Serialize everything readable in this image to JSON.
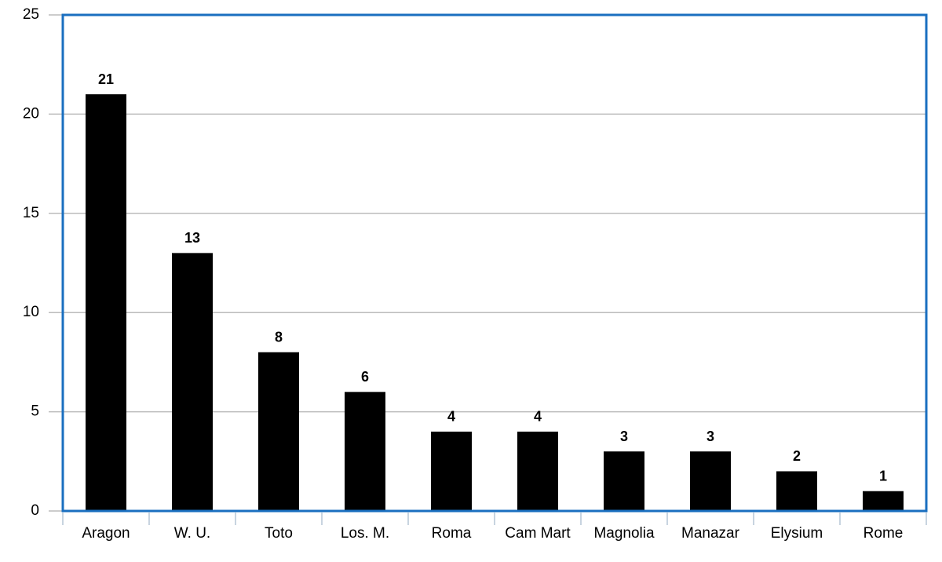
{
  "chart_data": {
    "type": "bar",
    "categories": [
      "Aragon",
      "W. U.",
      "Toto",
      "Los. M.",
      "Roma",
      "Cam Mart",
      "Magnolia",
      "Manazar",
      "Elysium",
      "Rome"
    ],
    "values": [
      21,
      13,
      8,
      6,
      4,
      4,
      3,
      3,
      2,
      1
    ],
    "color": "#000000",
    "ylim": [
      0,
      25
    ],
    "yticks": [
      0,
      5,
      10,
      15,
      20,
      25
    ],
    "grid": true
  }
}
